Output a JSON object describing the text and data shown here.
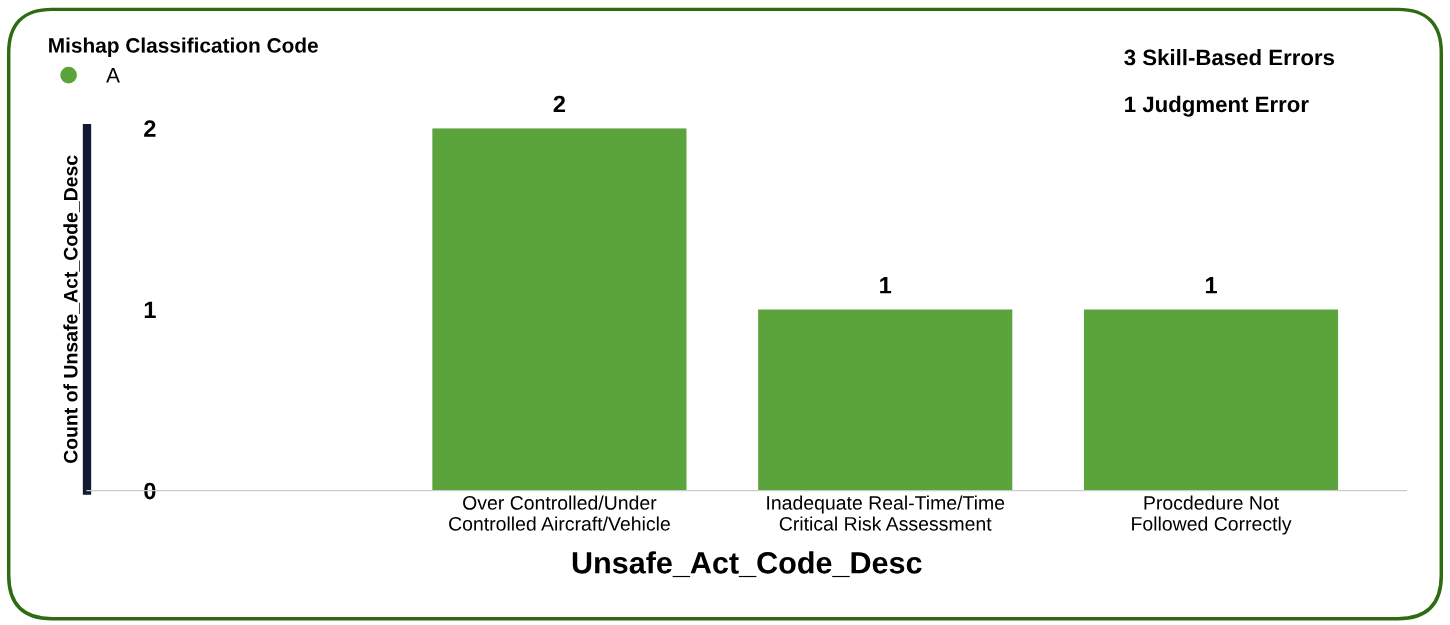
{
  "chart_data": {
    "type": "bar",
    "categories": [
      "Over Controlled/Under\nControlled Aircraft/Vehicle",
      "Inadequate Real-Time/Time\nCritical Risk Assessment",
      "Procdedure Not\nFollowed Correctly"
    ],
    "series": [
      {
        "name": "A",
        "color": "#5ba33b",
        "values": [
          2,
          1,
          1
        ]
      }
    ],
    "legend_title": "Mishap Classification Code",
    "legend": "top left",
    "xlabel": "Unsafe_Act_Code_Desc",
    "ylabel": "Count of Unsafe_Act_Code_Desc",
    "ylim": [
      0,
      2
    ],
    "yticks": [
      0,
      1,
      2
    ],
    "data_labels": true,
    "grid": false,
    "annotations": [
      "3 Skill-Based Errors",
      "1 Judgment Error"
    ]
  }
}
